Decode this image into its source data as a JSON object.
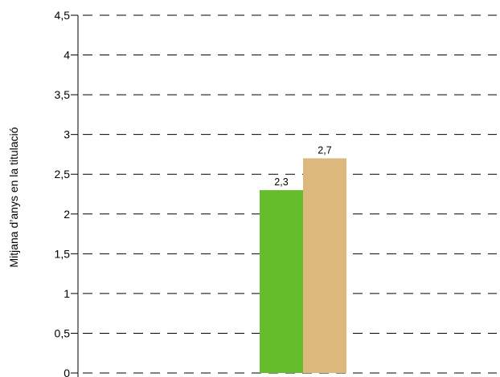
{
  "chart_data": {
    "type": "bar",
    "ylabel": "Mitjana d’anys en la titulació",
    "ylim": [
      0,
      4.5
    ],
    "yticks": [
      "0",
      "0,5",
      "1",
      "1,5",
      "2",
      "2,5",
      "3",
      "3,5",
      "4",
      "4,5"
    ],
    "ytick_values": [
      0,
      0.5,
      1,
      1.5,
      2,
      2.5,
      3,
      3.5,
      4,
      4.5
    ],
    "grid": true,
    "series": [
      {
        "values": [
          2.3
        ],
        "labels": [
          "2,3"
        ],
        "color": "#66bd2b"
      },
      {
        "values": [
          2.7
        ],
        "labels": [
          "2,7"
        ],
        "color": "#dcb87c"
      }
    ]
  }
}
